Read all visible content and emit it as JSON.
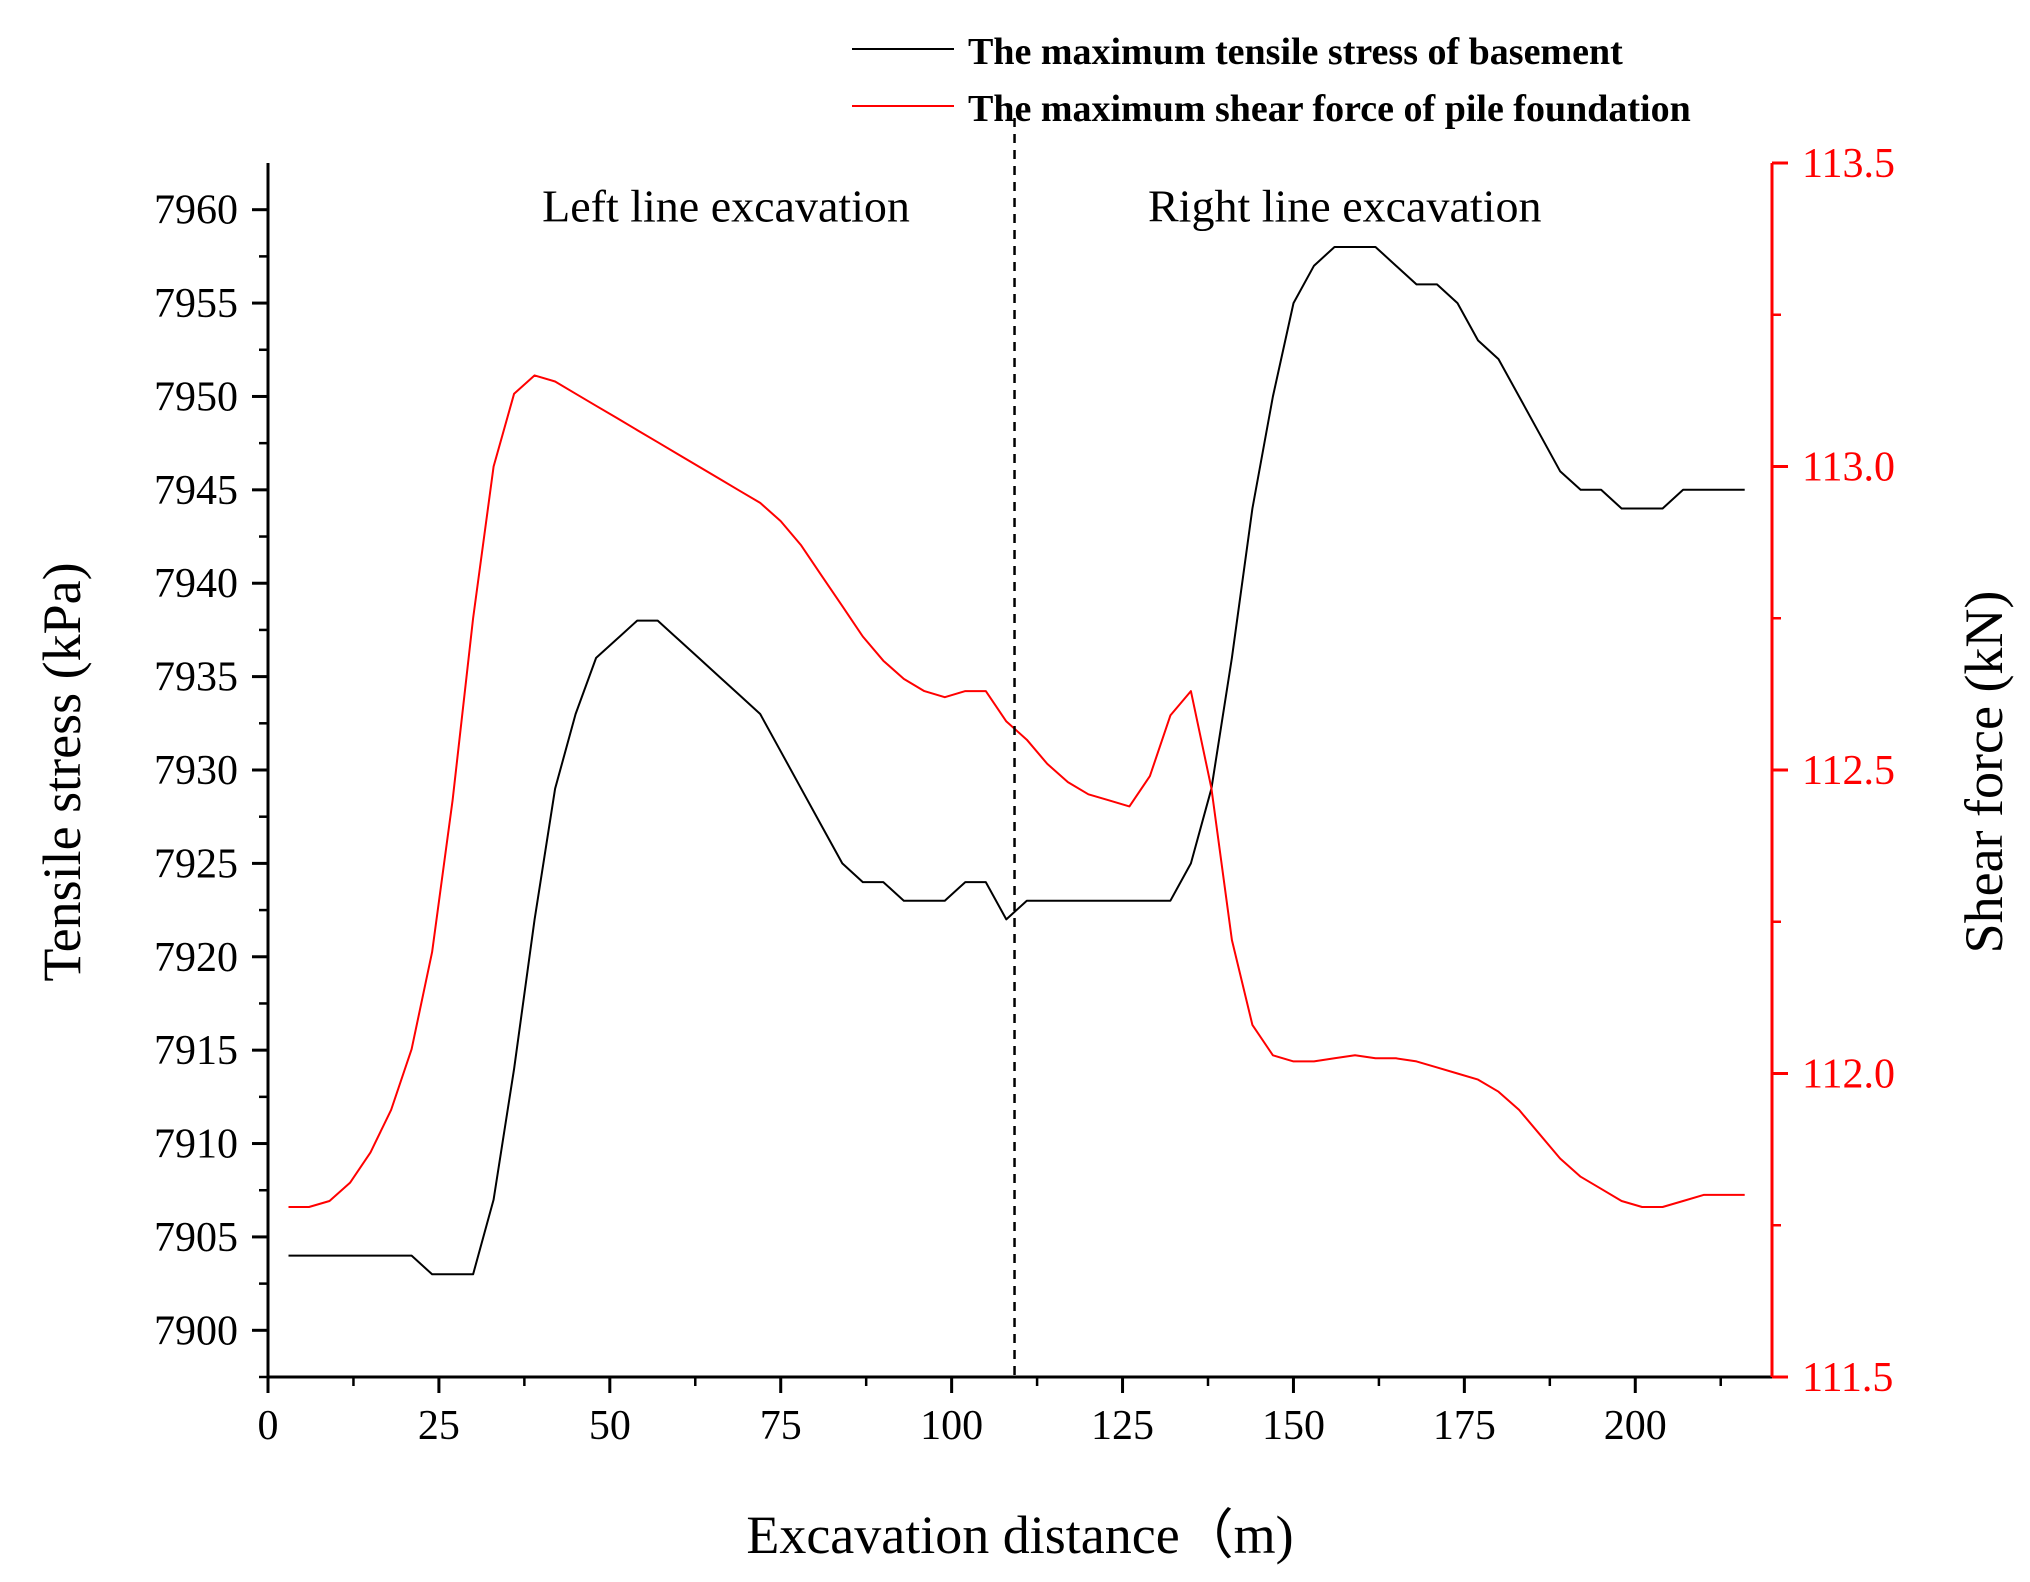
{
  "chart_data": {
    "type": "line",
    "xlabel": "Excavation distance（m)",
    "ylabel_left": "Tensile stress (kPa)",
    "ylabel_right": "Shear force (kN)",
    "xlim": [
      0,
      220
    ],
    "ylim_left": [
      7897.5,
      7962.5
    ],
    "ylim_right": [
      111.5,
      113.5
    ],
    "x_ticks": [
      0,
      25,
      50,
      75,
      100,
      125,
      150,
      175,
      200
    ],
    "x_tick_labels": [
      "0",
      "25",
      "50",
      "75",
      "100",
      "125",
      "150",
      "175",
      "200"
    ],
    "y_left_ticks": [
      7900,
      7905,
      7910,
      7915,
      7920,
      7925,
      7930,
      7935,
      7940,
      7945,
      7950,
      7955,
      7960
    ],
    "y_left_tick_labels": [
      "7900",
      "7905",
      "7910",
      "7915",
      "7920",
      "7925",
      "7930",
      "7935",
      "7940",
      "7945",
      "7950",
      "7955",
      "7960"
    ],
    "y_right_ticks": [
      111.5,
      112.0,
      112.5,
      113.0,
      113.5
    ],
    "y_right_tick_labels": [
      "111.5",
      "112.0",
      "112.5",
      "113.0",
      "113.5"
    ],
    "divider_x": 109.2,
    "annotations": [
      {
        "text": "Left line excavation",
        "x": 67,
        "y_left": 7960
      },
      {
        "text": "Right line excavation",
        "x": 157.5,
        "y_left": 7960
      }
    ],
    "legend_position": "top-right",
    "series": [
      {
        "name": "The maximum tensile stress of basement",
        "axis": "left",
        "color": "#000000",
        "x": [
          3,
          21,
          24,
          30,
          33,
          36,
          39,
          42,
          45,
          48,
          51,
          54,
          57,
          60,
          63,
          66,
          69,
          72,
          75,
          78,
          81,
          84,
          87,
          90,
          93,
          96,
          99,
          102,
          105,
          108,
          111,
          114,
          117,
          120,
          123,
          126,
          129,
          132,
          135,
          138,
          141,
          144,
          147,
          150,
          153,
          156,
          159,
          162,
          165,
          168,
          171,
          174,
          177,
          180,
          183,
          186,
          189,
          192,
          195,
          198,
          201,
          204,
          207,
          210,
          213,
          216
        ],
        "y": [
          7904,
          7904,
          7903,
          7903,
          7907,
          7914,
          7922,
          7929,
          7933,
          7936,
          7937,
          7938,
          7938,
          7937,
          7936,
          7935,
          7934,
          7933,
          7931,
          7929,
          7927,
          7925,
          7924,
          7924,
          7923,
          7923,
          7923,
          7924,
          7924,
          7922,
          7923,
          7923,
          7923,
          7923,
          7923,
          7923,
          7923,
          7923,
          7925,
          7929,
          7936,
          7944,
          7950,
          7955,
          7957,
          7958,
          7958,
          7958,
          7957,
          7956,
          7956,
          7955,
          7953,
          7952,
          7950,
          7948,
          7946,
          7945,
          7945,
          7944,
          7944,
          7944,
          7945,
          7945,
          7945,
          7945
        ]
      },
      {
        "name": "The maximum shear force of pile foundation",
        "axis": "right",
        "color": "#ff0000",
        "x": [
          3,
          6,
          9,
          12,
          15,
          18,
          21,
          24,
          27,
          30,
          33,
          36,
          39,
          42,
          45,
          48,
          51,
          54,
          57,
          60,
          63,
          66,
          69,
          72,
          75,
          78,
          81,
          84,
          87,
          90,
          93,
          96,
          99,
          102,
          105,
          108,
          111,
          114,
          117,
          120,
          123,
          126,
          129,
          132,
          135,
          138,
          141,
          144,
          147,
          150,
          153,
          156,
          159,
          162,
          165,
          168,
          171,
          174,
          177,
          180,
          183,
          186,
          189,
          192,
          195,
          198,
          201,
          204,
          207,
          210,
          213,
          216
        ],
        "y": [
          111.78,
          111.78,
          111.79,
          111.82,
          111.87,
          111.94,
          112.04,
          112.2,
          112.45,
          112.75,
          113.0,
          113.12,
          113.15,
          113.14,
          113.12,
          113.1,
          113.08,
          113.06,
          113.04,
          113.02,
          113.0,
          112.98,
          112.96,
          112.94,
          112.91,
          112.87,
          112.82,
          112.77,
          112.72,
          112.68,
          112.65,
          112.63,
          112.62,
          112.63,
          112.63,
          112.58,
          112.55,
          112.51,
          112.48,
          112.46,
          112.45,
          112.44,
          112.49,
          112.59,
          112.63,
          112.47,
          112.22,
          112.08,
          112.03,
          112.02,
          112.02,
          112.025,
          112.03,
          112.025,
          112.025,
          112.02,
          112.01,
          112.0,
          111.99,
          111.97,
          111.94,
          111.9,
          111.86,
          111.83,
          111.81,
          111.79,
          111.78,
          111.78,
          111.79,
          111.8,
          111.8,
          111.8
        ]
      }
    ]
  }
}
